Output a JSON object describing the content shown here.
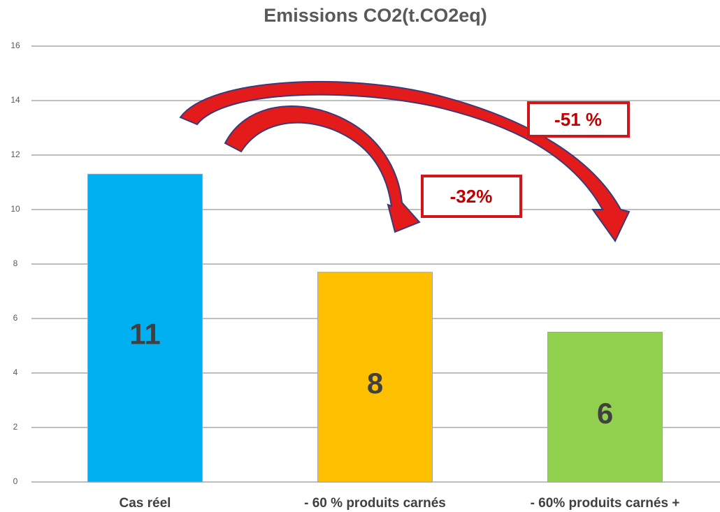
{
  "chart_data": {
    "type": "bar",
    "title": "Emissions CO2(t.CO2eq)",
    "categories": [
      "Cas réel",
      "- 60 % produits carnés",
      "- 60% produits carnés +"
    ],
    "values": [
      11.3,
      7.7,
      5.5
    ],
    "value_labels": [
      "11",
      "8",
      "6"
    ],
    "colors": [
      "#00b0f0",
      "#ffc000",
      "#92d050"
    ],
    "ylim": [
      0,
      16
    ],
    "yticks": [
      0,
      2,
      4,
      6,
      8,
      10,
      12,
      14,
      16
    ],
    "grid": true,
    "annotations": [
      "-32%",
      "-51 %"
    ]
  }
}
